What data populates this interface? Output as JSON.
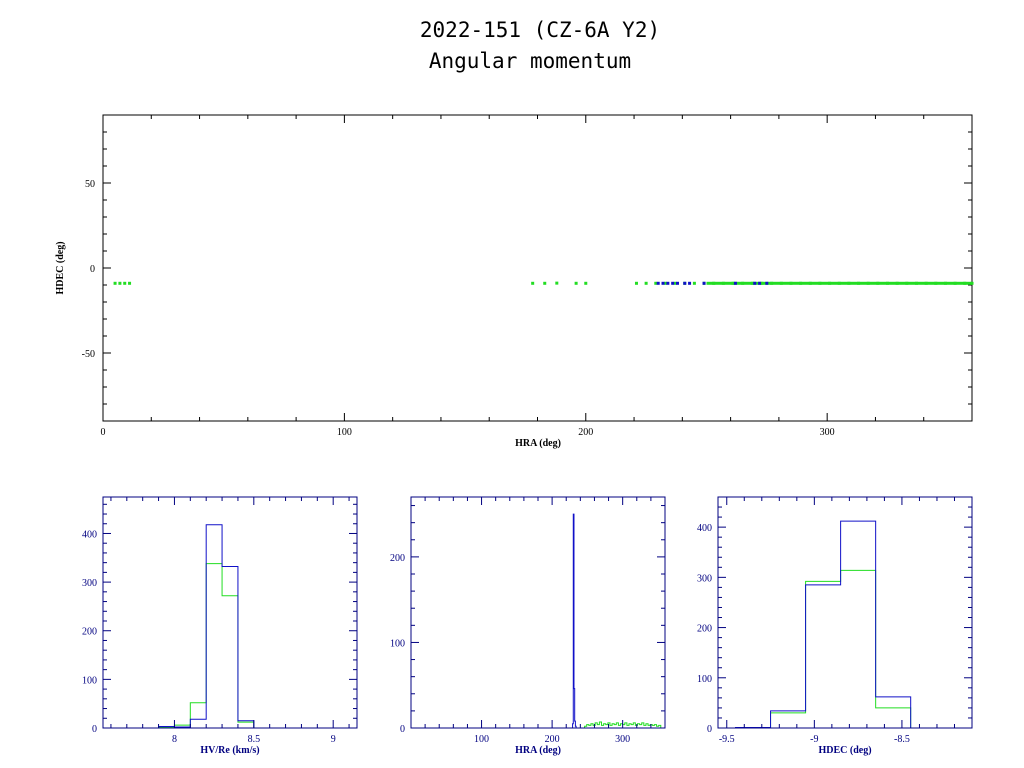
{
  "title": "2022-151 (CZ-6A Y2)",
  "subtitle": "Angular momentum",
  "colors": {
    "axes_top": "#000000",
    "axes_bottom": "#000080",
    "series_blue": "#1010c8",
    "series_green": "#22dd22"
  },
  "chart_data": [
    {
      "type": "scatter",
      "xlabel": "HRA (deg)",
      "ylabel": "HDEC (deg)",
      "xlim": [
        0,
        360
      ],
      "ylim": [
        -90,
        90
      ],
      "xticks": [
        "0",
        "100",
        "200",
        "300"
      ],
      "yticks": [
        "50",
        "0",
        "-50"
      ],
      "grid": false,
      "series": [
        {
          "color": "green",
          "points": [
            [
              5,
              -9
            ],
            [
              7,
              -9
            ],
            [
              9,
              -9
            ],
            [
              11,
              -9
            ],
            [
              178,
              -9
            ],
            [
              183,
              -9
            ],
            [
              188,
              -8.9
            ],
            [
              196,
              -9
            ],
            [
              200,
              -9
            ],
            [
              221,
              -9
            ],
            [
              225,
              -9
            ],
            [
              229,
              -9
            ],
            [
              233,
              -9
            ],
            [
              237,
              -9
            ],
            [
              241,
              -9
            ],
            [
              245,
              -9
            ],
            [
              249,
              -9
            ],
            [
              253,
              -9
            ],
            [
              257,
              -9
            ],
            [
              261,
              -9
            ],
            [
              265,
              -9
            ],
            [
              269,
              -9
            ],
            [
              273,
              -9
            ],
            [
              277,
              -9
            ],
            [
              281,
              -9
            ],
            [
              285,
              -9
            ],
            [
              289,
              -9
            ],
            [
              293,
              -9
            ],
            [
              297,
              -9
            ],
            [
              301,
              -9
            ],
            [
              305,
              -9
            ],
            [
              309,
              -9
            ],
            [
              313,
              -9
            ],
            [
              317,
              -9
            ],
            [
              321,
              -9
            ],
            [
              325,
              -9
            ],
            [
              329,
              -9
            ],
            [
              333,
              -9
            ],
            [
              337,
              -9
            ],
            [
              341,
              -9
            ],
            [
              345,
              -9
            ],
            [
              349,
              -9
            ],
            [
              353,
              -9
            ],
            [
              357,
              -9
            ],
            [
              360,
              -9
            ]
          ]
        },
        {
          "color": "blue",
          "points": [
            [
              230,
              -9
            ],
            [
              232,
              -9
            ],
            [
              234,
              -9
            ],
            [
              236,
              -9
            ],
            [
              238,
              -9
            ],
            [
              241,
              -9
            ],
            [
              243,
              -9
            ],
            [
              249,
              -9
            ],
            [
              262,
              -9
            ],
            [
              270,
              -9
            ],
            [
              272,
              -9
            ],
            [
              275,
              -9
            ]
          ]
        }
      ]
    },
    {
      "type": "histogram",
      "xlabel": "HV/Re (km/s)",
      "xlim": [
        7.55,
        9.15
      ],
      "ylim": [
        0,
        475
      ],
      "xticks": [
        {
          "v": 8,
          "label": "8"
        },
        {
          "v": 8.5,
          "label": "8.5"
        },
        {
          "v": 9,
          "label": "9"
        }
      ],
      "yticks": [
        {
          "v": 0,
          "label": "0"
        },
        {
          "v": 100,
          "label": "100"
        },
        {
          "v": 200,
          "label": "200"
        },
        {
          "v": 300,
          "label": "300"
        },
        {
          "v": 400,
          "label": "400"
        }
      ],
      "bin_edges": [
        7.9,
        8.0,
        8.1,
        8.2,
        8.3,
        8.4,
        8.5,
        8.6
      ],
      "series": [
        {
          "color": "blue",
          "counts": [
            3,
            2,
            18,
            418,
            332,
            15,
            0
          ]
        },
        {
          "color": "green",
          "counts": [
            2,
            6,
            52,
            338,
            272,
            12,
            0
          ]
        }
      ]
    },
    {
      "type": "histogram",
      "xlabel": "HRA (deg)",
      "xlim": [
        0,
        360
      ],
      "ylim": [
        0,
        270
      ],
      "xticks": [
        {
          "v": 100,
          "label": "100"
        },
        {
          "v": 200,
          "label": "200"
        },
        {
          "v": 300,
          "label": "300"
        }
      ],
      "yticks": [
        {
          "v": 0,
          "label": "0"
        },
        {
          "v": 100,
          "label": "100"
        },
        {
          "v": 200,
          "label": "200"
        }
      ],
      "series": [
        {
          "color": "blue",
          "bins": [
            [
              229,
              230,
              5
            ],
            [
              230,
              231,
              250
            ],
            [
              231,
              232,
              46
            ],
            [
              232,
              233,
              8
            ],
            [
              233,
              234,
              2
            ]
          ]
        },
        {
          "color": "green",
          "bins": [
            [
              246,
              249,
              2
            ],
            [
              249,
              252,
              4
            ],
            [
              252,
              255,
              3
            ],
            [
              255,
              258,
              5
            ],
            [
              258,
              261,
              3
            ],
            [
              261,
              264,
              6
            ],
            [
              264,
              267,
              4
            ],
            [
              267,
              270,
              7
            ],
            [
              270,
              273,
              3
            ],
            [
              273,
              276,
              5
            ],
            [
              276,
              279,
              4
            ],
            [
              279,
              282,
              6
            ],
            [
              282,
              285,
              3
            ],
            [
              285,
              288,
              5
            ],
            [
              288,
              291,
              4
            ],
            [
              291,
              294,
              6
            ],
            [
              294,
              297,
              3
            ],
            [
              297,
              300,
              5
            ],
            [
              300,
              303,
              4
            ],
            [
              303,
              306,
              6
            ],
            [
              306,
              309,
              3
            ],
            [
              309,
              312,
              5
            ],
            [
              312,
              315,
              4
            ],
            [
              315,
              318,
              6
            ],
            [
              318,
              321,
              3
            ],
            [
              321,
              324,
              5
            ],
            [
              324,
              327,
              4
            ],
            [
              327,
              330,
              6
            ],
            [
              330,
              333,
              3
            ],
            [
              333,
              336,
              5
            ],
            [
              336,
              339,
              3
            ],
            [
              339,
              342,
              4
            ],
            [
              342,
              345,
              3
            ],
            [
              345,
              348,
              4
            ],
            [
              348,
              351,
              2
            ],
            [
              351,
              354,
              3
            ]
          ]
        }
      ]
    },
    {
      "type": "histogram",
      "xlabel": "HDEC (deg)",
      "xlim": [
        -9.55,
        -8.1
      ],
      "ylim": [
        0,
        460
      ],
      "xticks": [
        {
          "v": -9.5,
          "label": "-9.5"
        },
        {
          "v": -9,
          "label": "-9"
        },
        {
          "v": -8.5,
          "label": "-8.5"
        }
      ],
      "yticks": [
        {
          "v": 0,
          "label": "0"
        },
        {
          "v": 100,
          "label": "100"
        },
        {
          "v": 200,
          "label": "200"
        },
        {
          "v": 300,
          "label": "300"
        },
        {
          "v": 400,
          "label": "400"
        }
      ],
      "bin_edges": [
        -9.45,
        -9.25,
        -9.05,
        -8.85,
        -8.65,
        -8.45
      ],
      "series": [
        {
          "color": "blue",
          "counts": [
            1,
            34,
            285,
            412,
            62
          ]
        },
        {
          "color": "green",
          "counts": [
            1,
            30,
            292,
            314,
            40
          ]
        }
      ]
    }
  ]
}
